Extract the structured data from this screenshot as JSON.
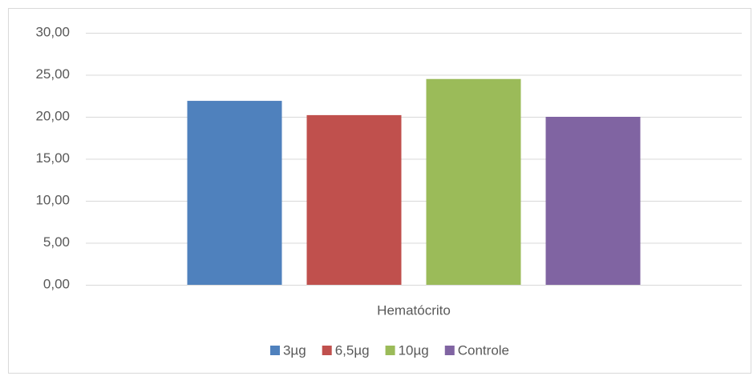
{
  "chart_data": {
    "type": "bar",
    "categories": [
      "Hematócrito"
    ],
    "series": [
      {
        "name": "3µg",
        "color": "#4f81bd",
        "values": [
          21.9
        ]
      },
      {
        "name": "6,5µg",
        "color": "#c0504d",
        "values": [
          20.2
        ]
      },
      {
        "name": "10µg",
        "color": "#9bbb59",
        "values": [
          24.5
        ]
      },
      {
        "name": "Controle",
        "color": "#8064a2",
        "values": [
          20.0
        ]
      }
    ],
    "ylim": [
      0,
      30
    ],
    "yticks": [
      {
        "value": 0,
        "label": "0,00"
      },
      {
        "value": 5,
        "label": "5,00"
      },
      {
        "value": 10,
        "label": "10,00"
      },
      {
        "value": 15,
        "label": "15,00"
      },
      {
        "value": 20,
        "label": "20,00"
      },
      {
        "value": 25,
        "label": "25,00"
      },
      {
        "value": 30,
        "label": "30,00"
      }
    ],
    "grid": true,
    "legend": "bottom"
  }
}
